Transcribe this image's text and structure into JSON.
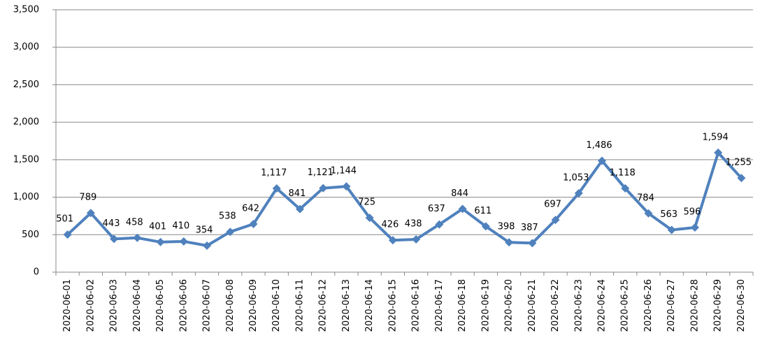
{
  "chart_data": {
    "type": "line",
    "categories": [
      "2020-06-01",
      "2020-06-02",
      "2020-06-03",
      "2020-06-04",
      "2020-06-05",
      "2020-06-06",
      "2020-06-07",
      "2020-06-08",
      "2020-06-09",
      "2020-06-10",
      "2020-06-11",
      "2020-06-12",
      "2020-06-13",
      "2020-06-14",
      "2020-06-15",
      "2020-06-16",
      "2020-06-17",
      "2020-06-18",
      "2020-06-19",
      "2020-06-20",
      "2020-06-21",
      "2020-06-22",
      "2020-06-23",
      "2020-06-24",
      "2020-06-25",
      "2020-06-26",
      "2020-06-27",
      "2020-06-28",
      "2020-06-29",
      "2020-06-30"
    ],
    "values": [
      501,
      789,
      443,
      458,
      401,
      410,
      354,
      538,
      642,
      1117,
      841,
      1121,
      1144,
      725,
      426,
      438,
      637,
      844,
      611,
      398,
      387,
      697,
      1053,
      1486,
      1118,
      784,
      563,
      596,
      1594,
      1255
    ],
    "value_labels": [
      "501",
      "789",
      "443",
      "458",
      "401",
      "410",
      "354",
      "538",
      "642",
      "1,117",
      "841",
      "1,121",
      "1,144",
      "725",
      "426",
      "438",
      "637",
      "844",
      "611",
      "398",
      "387",
      "697",
      "1,053",
      "1,486",
      "1,118",
      "784",
      "563",
      "596",
      "1,594",
      "1,255"
    ],
    "color": "#4f81bd",
    "ylim": [
      0,
      3500
    ],
    "yticks": [
      0,
      500,
      {
        "value": 1000,
        "label": "1,000"
      },
      {
        "value": 1500,
        "label": "1,500"
      },
      {
        "value": 2000,
        "label": "2,000"
      },
      {
        "value": 2500,
        "label": "2,500"
      },
      {
        "value": 3000,
        "label": "3,000"
      },
      {
        "value": 3500,
        "label": "3,500"
      }
    ],
    "grid": true
  }
}
